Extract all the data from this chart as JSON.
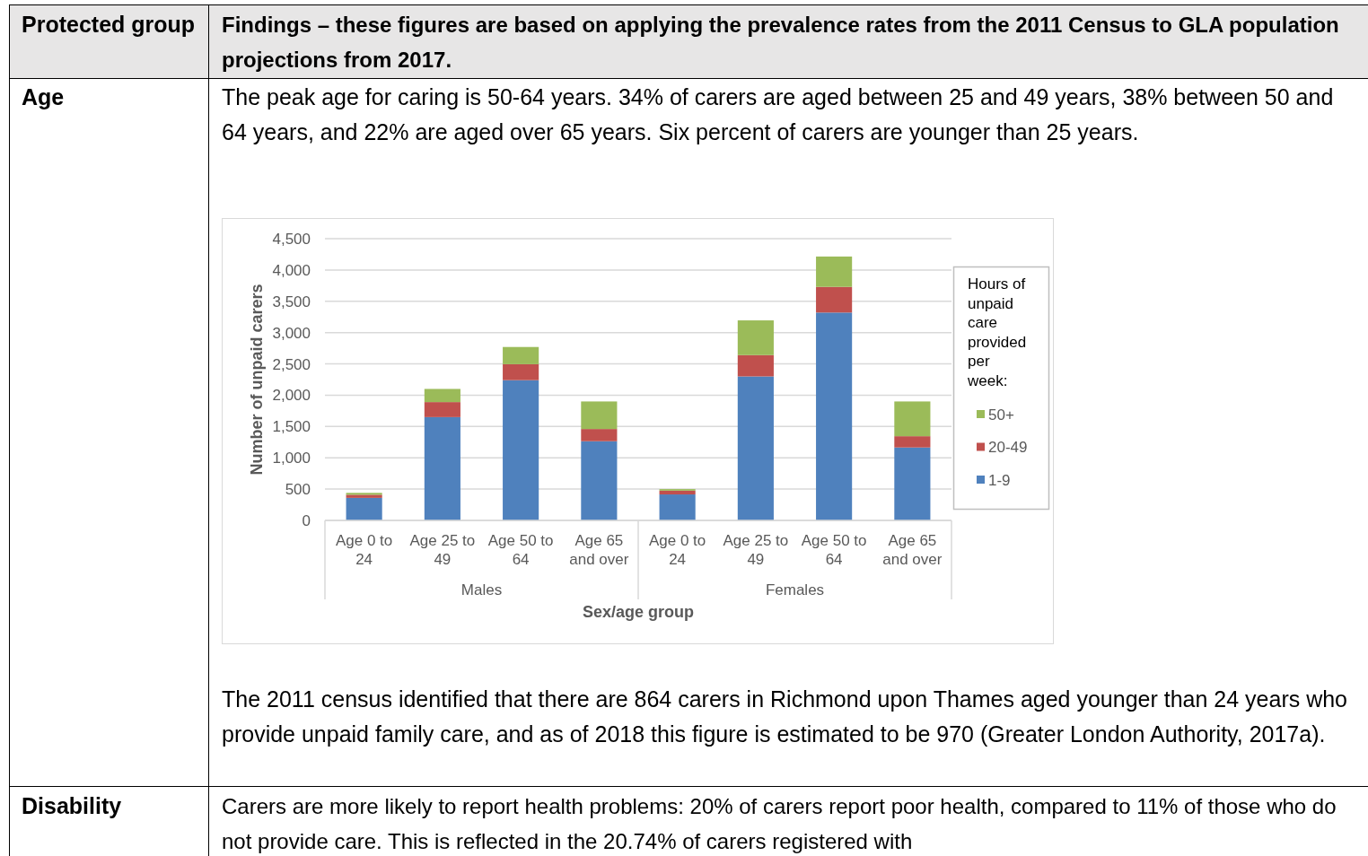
{
  "chart_data": {
    "type": "bar",
    "stacked": true,
    "categories": [
      "Age 0 to 24",
      "Age 25 to 49",
      "Age 50 to 64",
      "Age 65 and over",
      "Age 0 to 24",
      "Age 25 to 49",
      "Age 50 to 64",
      "Age 65 and over"
    ],
    "series": [
      {
        "name": "1-9",
        "color": "#4f81bd",
        "values": [
          360,
          1650,
          2240,
          1265,
          415,
          2300,
          3320,
          1165
        ]
      },
      {
        "name": "20-49",
        "color": "#c0504d",
        "values": [
          50,
          240,
          255,
          195,
          60,
          340,
          410,
          180
        ]
      },
      {
        "name": "50+",
        "color": "#9bbb59",
        "values": [
          30,
          210,
          275,
          440,
          25,
          555,
          485,
          555
        ]
      }
    ],
    "ylim": [
      0,
      4500
    ],
    "yticks": [
      0,
      {
        "value": 500,
        "label": "500"
      },
      {
        "value": 1000,
        "label": "1,000"
      },
      {
        "value": 1500,
        "label": "1,500"
      },
      {
        "value": 2000,
        "label": "2,000"
      },
      {
        "value": 2500,
        "label": "2,500"
      },
      {
        "value": 3000,
        "label": "3,000"
      },
      {
        "value": 3500,
        "label": "3,500"
      },
      {
        "value": 4000,
        "label": "4,000"
      },
      {
        "value": 4500,
        "label": "4,500"
      }
    ],
    "grid": "y",
    "legend": "right",
    "legend_title": "Hours of unpaid care provided per week:",
    "xlabel": "Sex/age group",
    "ylabel": "Number of unpaid carers",
    "annotations": [
      "Protected group",
      "Findings – these figures are based on applying the prevalence rates from the 2011 Census to GLA population projections from 2017.",
      "Age",
      "The peak age for caring is 50-64 years. 34% of carers are aged between 25 and 49 years, 38% between 50 and 64 years, and 22% are aged over 65 years. Six percent of carers are younger than 25 years.",
      "The 2011 census identified that there are 864 carers in Richmond upon Thames aged younger than 24 years who provide unpaid family care, and as of 2018 this figure is estimated to be 970 (Greater London Authority, 2017a).",
      "Disability",
      "Carers are more likely to report health problems:  20% of carers report poor health, compared to 11% of those who do not provide care.  This is reflected in the 20.74% of carers registered with",
      "Males",
      "Females"
    ]
  }
}
